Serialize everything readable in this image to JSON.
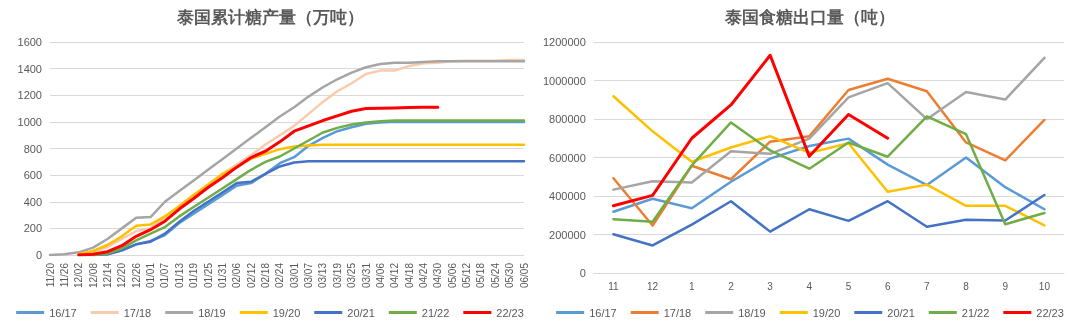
{
  "chart_data": [
    {
      "type": "line",
      "title": "泰国累计糖产量（万吨）",
      "categories": [
        "11/20",
        "11/26",
        "12/02",
        "12/08",
        "12/14",
        "12/20",
        "12/26",
        "01/01",
        "01/07",
        "01/13",
        "01/19",
        "01/25",
        "01/31",
        "02/06",
        "02/12",
        "02/18",
        "02/24",
        "03/01",
        "03/07",
        "03/13",
        "03/19",
        "03/25",
        "03/31",
        "04/06",
        "04/12",
        "04/18",
        "04/24",
        "04/30",
        "05/06",
        "05/12",
        "05/18",
        "05/24",
        "05/30",
        "06/05"
      ],
      "ylim": [
        0,
        1600
      ],
      "yticks": [
        0,
        200,
        400,
        600,
        800,
        1000,
        1200,
        1400,
        1600
      ],
      "grid": "y",
      "legend": "bottom",
      "marker": "none",
      "line_style": "solid",
      "series": [
        {
          "name": "16/17",
          "color": "#5b9bd5",
          "values": [
            null,
            null,
            null,
            0,
            5,
            35,
            80,
            105,
            150,
            240,
            310,
            380,
            450,
            520,
            540,
            610,
            690,
            735,
            820,
            880,
            930,
            960,
            985,
            995,
            1000,
            1000,
            1000,
            1000,
            1000,
            1000,
            1000,
            1000,
            1000,
            1000
          ]
        },
        {
          "name": "17/18",
          "color": "#f8cbad",
          "values": [
            null,
            null,
            0,
            20,
            60,
            120,
            180,
            200,
            280,
            370,
            450,
            530,
            610,
            680,
            750,
            830,
            900,
            970,
            1060,
            1150,
            1230,
            1290,
            1360,
            1385,
            1385,
            1420,
            1440,
            1445,
            1455,
            1460,
            1460,
            1460,
            1465,
            1465
          ]
        },
        {
          "name": "18/19",
          "color": "#a5a5a5",
          "values": [
            0,
            5,
            20,
            55,
            120,
            200,
            280,
            285,
            400,
            480,
            560,
            640,
            720,
            800,
            880,
            960,
            1040,
            1110,
            1190,
            1260,
            1320,
            1370,
            1410,
            1435,
            1445,
            1445,
            1450,
            1455,
            1455,
            1455,
            1455,
            1455,
            1455,
            1455
          ]
        },
        {
          "name": "19/20",
          "color": "#ffc000",
          "values": [
            null,
            null,
            5,
            30,
            75,
            140,
            220,
            230,
            290,
            366,
            450,
            528,
            607,
            660,
            724,
            760,
            795,
            815,
            822,
            828,
            828,
            828,
            828,
            828,
            828,
            828,
            828,
            828,
            828,
            828,
            828,
            828,
            828,
            828
          ]
        },
        {
          "name": "20/21",
          "color": "#4472c4",
          "values": [
            null,
            null,
            null,
            0,
            5,
            35,
            80,
            100,
            160,
            250,
            330,
            400,
            470,
            540,
            550,
            610,
            665,
            695,
            705,
            705,
            705,
            705,
            705,
            705,
            705,
            705,
            705,
            705,
            705,
            705,
            705,
            705,
            705,
            705
          ]
        },
        {
          "name": "21/22",
          "color": "#70ad47",
          "values": [
            null,
            null,
            0,
            0,
            10,
            50,
            110,
            160,
            210,
            290,
            360,
            430,
            500,
            570,
            640,
            700,
            740,
            800,
            860,
            920,
            955,
            980,
            995,
            1005,
            1010,
            1010,
            1010,
            1010,
            1010,
            1010,
            1010,
            1010,
            1010,
            1010
          ]
        },
        {
          "name": "22/23",
          "color": "#ff0000",
          "values": [
            null,
            null,
            0,
            5,
            25,
            70,
            140,
            190,
            254,
            345,
            424,
            507,
            580,
            660,
            732,
            780,
            850,
            930,
            970,
            1010,
            1045,
            1080,
            1100,
            1102,
            1105,
            1108,
            1110,
            1110,
            null,
            null,
            null,
            null,
            null,
            null
          ]
        }
      ]
    },
    {
      "type": "line",
      "title": "泰国食糖出口量（吨）",
      "categories": [
        "11",
        "12",
        "1",
        "2",
        "3",
        "4",
        "5",
        "6",
        "7",
        "8",
        "9",
        "10"
      ],
      "ylim": [
        0,
        1200000
      ],
      "yticks": [
        0,
        200000,
        400000,
        600000,
        800000,
        1000000,
        1200000
      ],
      "grid": "y",
      "legend": "bottom",
      "marker": "none",
      "line_style": "solid",
      "series": [
        {
          "name": "16/17",
          "color": "#5b9bd5",
          "values": [
            318000,
            386000,
            336000,
            474000,
            594000,
            660000,
            698000,
            563000,
            457000,
            600000,
            446000,
            331000
          ]
        },
        {
          "name": "17/18",
          "color": "#ed7d31",
          "values": [
            492000,
            247000,
            557000,
            487000,
            682000,
            710000,
            951000,
            1009000,
            944000,
            678000,
            585000,
            795000
          ]
        },
        {
          "name": "18/19",
          "color": "#a5a5a5",
          "values": [
            433000,
            477000,
            470000,
            632000,
            619000,
            698000,
            912000,
            986000,
            799000,
            940000,
            901000,
            1118000
          ]
        },
        {
          "name": "19/20",
          "color": "#ffc000",
          "values": [
            918000,
            736000,
            578000,
            652000,
            711000,
            624000,
            674000,
            422000,
            459000,
            349000,
            349000,
            247000
          ]
        },
        {
          "name": "20/21",
          "color": "#4472c4",
          "values": [
            201000,
            143000,
            251000,
            373000,
            215000,
            331000,
            271000,
            373000,
            240000,
            277000,
            273000,
            405000
          ]
        },
        {
          "name": "21/22",
          "color": "#70ad47",
          "values": [
            279000,
            266000,
            559000,
            782000,
            637000,
            542000,
            678000,
            604000,
            814000,
            721000,
            253000,
            312000
          ]
        },
        {
          "name": "22/23",
          "color": "#ff0000",
          "values": [
            349000,
            403000,
            700000,
            873000,
            1131000,
            606000,
            823000,
            700000,
            null,
            null,
            null,
            null
          ]
        }
      ]
    }
  ]
}
